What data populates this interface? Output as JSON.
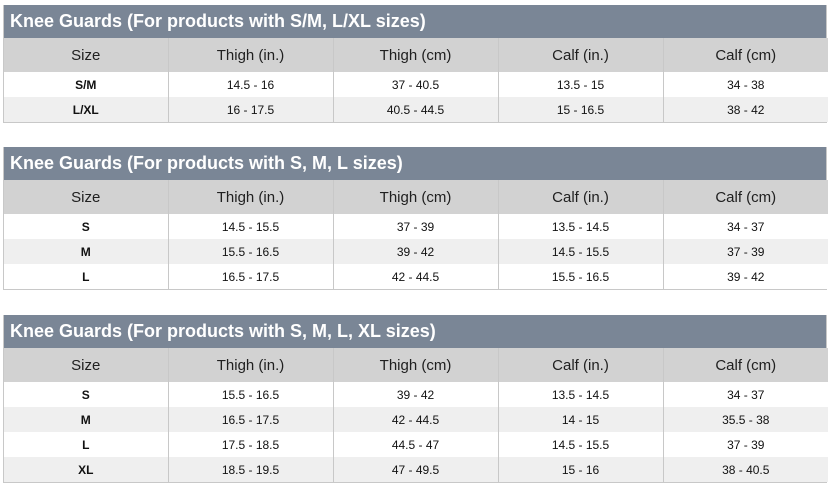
{
  "headers": [
    "Size",
    "Thigh (in.)",
    "Thigh (cm)",
    "Calf (in.)",
    "Calf (cm)"
  ],
  "tables": [
    {
      "title": "Knee Guards (For products with S/M, L/XL sizes)",
      "rows": [
        [
          "S/M",
          "14.5 - 16",
          "37 - 40.5",
          "13.5 - 15",
          "34 - 38"
        ],
        [
          "L/XL",
          "16 - 17.5",
          "40.5 - 44.5",
          "15 - 16.5",
          "38 - 42"
        ]
      ]
    },
    {
      "title": "Knee Guards (For products with S, M, L sizes)",
      "rows": [
        [
          "S",
          "14.5 - 15.5",
          "37 - 39",
          "13.5 - 14.5",
          "34 - 37"
        ],
        [
          "M",
          "15.5 - 16.5",
          "39 - 42",
          "14.5 - 15.5",
          "37 - 39"
        ],
        [
          "L",
          "16.5 - 17.5",
          "42 - 44.5",
          "15.5 - 16.5",
          "39 - 42"
        ]
      ]
    },
    {
      "title": "Knee Guards (For products with S, M, L, XL sizes)",
      "rows": [
        [
          "S",
          "15.5 - 16.5",
          "39 - 42",
          "13.5 - 14.5",
          "34 - 37"
        ],
        [
          "M",
          "16.5 - 17.5",
          "42 - 44.5",
          "14 - 15",
          "35.5 - 38"
        ],
        [
          "L",
          "17.5 - 18.5",
          "44.5 - 47",
          "14.5 - 15.5",
          "37 - 39"
        ],
        [
          "XL",
          "18.5 - 19.5",
          "47 - 49.5",
          "15 - 16",
          "38 - 40.5"
        ]
      ]
    }
  ],
  "colors": {
    "title_bar": "#7a8696",
    "header_row": "#d2d2d2",
    "odd_row": "#efefef",
    "border": "#c8c8c8"
  }
}
